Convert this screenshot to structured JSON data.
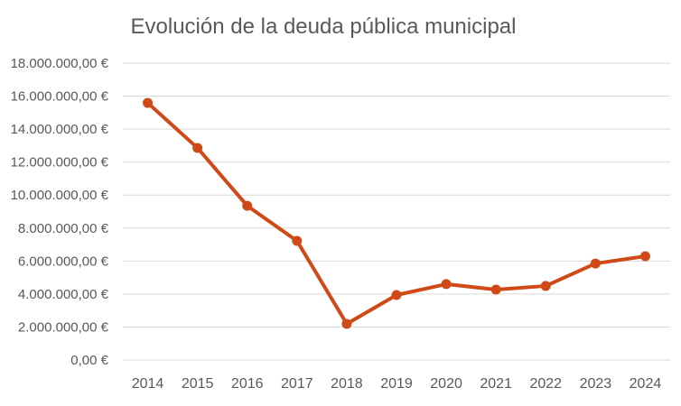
{
  "chart_data": {
    "type": "line",
    "title": "Evolución de la deuda pública municipal",
    "xlabel": "",
    "ylabel": "",
    "categories": [
      "2014",
      "2015",
      "2016",
      "2017",
      "2018",
      "2019",
      "2020",
      "2021",
      "2022",
      "2023",
      "2024"
    ],
    "series": [
      {
        "values": [
          15590000,
          12860000,
          9350000,
          7220000,
          2190000,
          3940000,
          4600000,
          4270000,
          4490000,
          5850000,
          6290000
        ]
      }
    ],
    "ylim": [
      0,
      18000000
    ],
    "yticks": [
      0,
      2000000,
      4000000,
      6000000,
      8000000,
      10000000,
      12000000,
      14000000,
      16000000,
      18000000
    ],
    "ytick_labels": [
      "0,00 €",
      "2.000.000,00 €",
      "4.000.000,00 €",
      "6.000.000,00 €",
      "8.000.000,00 €",
      "10.000.000,00 €",
      "12.000.000,00 €",
      "14.000.000,00 €",
      "16.000.000,00 €",
      "18.000.000,00 €"
    ],
    "grid": true,
    "legend": "none",
    "colors": {
      "line": "#d04a17",
      "grid": "#d9d9d9",
      "text": "#595959"
    }
  }
}
